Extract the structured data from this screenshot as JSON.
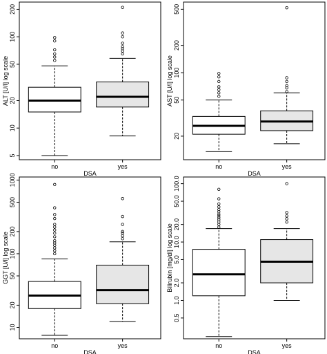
{
  "chart_data": [
    {
      "type": "box",
      "xlabel": "DSA",
      "ylabel": "ALT [U/l] log scale",
      "log_y": true,
      "ylim": [
        4.5,
        240
      ],
      "yticks": [
        5,
        10,
        20,
        50,
        100,
        200
      ],
      "categories": [
        "no",
        "yes"
      ],
      "box_colors": [
        "#ffffff",
        "#e6e6e6"
      ],
      "boxes": [
        {
          "whisker_low": 5,
          "q1": 15,
          "median": 20,
          "q3": 28,
          "whisker_high": 48,
          "outliers": [
            55,
            60,
            65,
            72,
            90,
            98
          ]
        },
        {
          "whisker_low": 8.2,
          "q1": 17,
          "median": 22,
          "q3": 32,
          "whisker_high": 58,
          "outliers": [
            65,
            70,
            74,
            78,
            85,
            100,
            110,
            210
          ]
        }
      ]
    },
    {
      "type": "box",
      "xlabel": "DSA",
      "ylabel": "AST [U/l] log scale",
      "log_y": true,
      "ylim": [
        11,
        600
      ],
      "yticks": [
        20,
        50,
        100,
        200,
        500
      ],
      "categories": [
        "no",
        "yes"
      ],
      "box_colors": [
        "#ffffff",
        "#e6e6e6"
      ],
      "boxes": [
        {
          "whisker_low": 13.5,
          "q1": 21,
          "median": 26,
          "q3": 33,
          "whisker_high": 50,
          "outliers": [
            55,
            60,
            65,
            70,
            80,
            90,
            98
          ]
        },
        {
          "whisker_low": 16.5,
          "q1": 23,
          "median": 29,
          "q3": 38,
          "whisker_high": 60,
          "outliers": [
            62,
            68,
            72,
            80,
            88,
            520
          ]
        }
      ]
    },
    {
      "type": "box",
      "xlabel": "DSA",
      "ylabel": "GGT [U/l] log scale",
      "log_y": true,
      "ylim": [
        7,
        1100
      ],
      "yticks": [
        10,
        20,
        50,
        100,
        200,
        500,
        1000
      ],
      "categories": [
        "no",
        "yes"
      ],
      "box_colors": [
        "#ffffff",
        "#e6e6e6"
      ],
      "boxes": [
        {
          "whisker_low": 7.8,
          "q1": 18,
          "median": 27,
          "q3": 42,
          "whisker_high": 85,
          "outliers": [
            100,
            110,
            120,
            130,
            140,
            150,
            170,
            190,
            210,
            230,
            250,
            300,
            340,
            420,
            870
          ]
        },
        {
          "whisker_low": 12,
          "q1": 21,
          "median": 32,
          "q3": 70,
          "whisker_high": 145,
          "outliers": [
            160,
            175,
            190,
            200,
            250,
            320,
            560
          ]
        }
      ]
    },
    {
      "type": "box",
      "xlabel": "DSA",
      "ylabel": "Bilirubin [mg/dl] log scale",
      "log_y": true,
      "ylim": [
        0.22,
        130
      ],
      "yticks": [
        0.5,
        1.0,
        2.0,
        5.0,
        10.0,
        20.0,
        50.0,
        100.0
      ],
      "ytick_labels": [
        "0.5",
        "1.0",
        "2.0",
        "5.0",
        "10.0",
        "20.0",
        "50.0",
        "100.0"
      ],
      "categories": [
        "no",
        "yes"
      ],
      "box_colors": [
        "#ffffff",
        "#e6e6e6"
      ],
      "boxes": [
        {
          "whisker_low": 0.24,
          "q1": 1.2,
          "median": 2.8,
          "q3": 7.5,
          "whisker_high": 17,
          "outliers": [
            18,
            20,
            22,
            24,
            26,
            28,
            30,
            33,
            36,
            40,
            45,
            55,
            80
          ]
        },
        {
          "whisker_low": 1.0,
          "q1": 2.0,
          "median": 4.6,
          "q3": 11,
          "whisker_high": 17,
          "outliers": [
            22,
            25,
            28,
            32,
            100
          ]
        }
      ]
    }
  ]
}
